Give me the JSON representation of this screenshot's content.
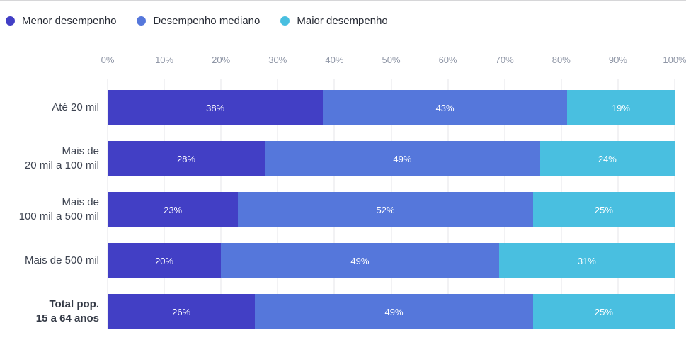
{
  "page": {
    "background": "#ffffff",
    "top_divider_color": "#d6d6d8"
  },
  "legend": {
    "position": "top",
    "items": [
      {
        "label": "Menor desempenho",
        "color": "#423fc5"
      },
      {
        "label": "Desempenho mediano",
        "color": "#5577db"
      },
      {
        "label": "Maior desempenho",
        "color": "#49bfe0"
      }
    ]
  },
  "axis": {
    "tick_labels": [
      "0%",
      "10%",
      "20%",
      "30%",
      "40%",
      "50%",
      "60%",
      "70%",
      "80%",
      "90%",
      "100%"
    ],
    "tick_color": "#8f96a6",
    "gridline_color": "#e5e6ea"
  },
  "chart_data": {
    "type": "bar",
    "orientation": "horizontal",
    "stacked": true,
    "unit": "%",
    "title": "",
    "xlabel": "",
    "ylabel": "",
    "xlim": [
      0,
      100
    ],
    "x_ticks": [
      0,
      10,
      20,
      30,
      40,
      50,
      60,
      70,
      80,
      90,
      100
    ],
    "grid": "vertical",
    "legend_position": "top",
    "categories": [
      "Até 20 mil",
      "Mais de 20 mil a 100 mil",
      "Mais de 100 mil a 500 mil",
      "Mais de 500 mil",
      "Total pop. 15 a 64 anos"
    ],
    "category_display": [
      "Até 20 mil",
      "Mais de\n20 mil a 100 mil",
      "Mais de\n100 mil a 500 mil",
      "Mais de 500 mil",
      "Total pop.\n15 a 64 anos"
    ],
    "category_bold": [
      false,
      false,
      false,
      false,
      true
    ],
    "series": [
      {
        "name": "Menor desempenho",
        "color": "#423fc5",
        "values": [
          38,
          28,
          23,
          20,
          26
        ],
        "labels": [
          "38%",
          "28%",
          "23%",
          "20%",
          "26%"
        ]
      },
      {
        "name": "Desempenho mediano",
        "color": "#5577db",
        "values": [
          43,
          49,
          52,
          49,
          49
        ],
        "labels": [
          "43%",
          "49%",
          "52%",
          "49%",
          "49%"
        ]
      },
      {
        "name": "Maior desempenho",
        "color": "#49bfe0",
        "values": [
          19,
          24,
          25,
          31,
          25
        ],
        "labels": [
          "19%",
          "24%",
          "25%",
          "31%",
          "25%"
        ]
      }
    ]
  }
}
